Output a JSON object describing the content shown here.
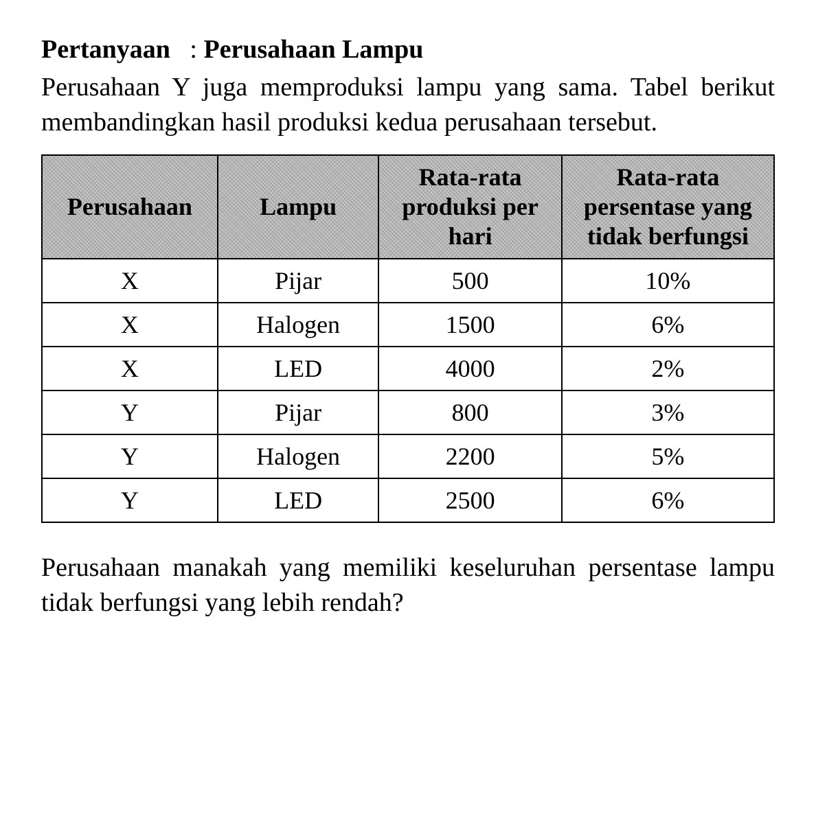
{
  "heading": {
    "label": "Pertanyaan",
    "separator": ":",
    "value": "Perusahaan Lampu"
  },
  "intro_text": "Perusahaan Y juga memproduksi lampu yang sama. Tabel berikut membandingkan hasil produksi kedua perusahaan tersebut.",
  "table": {
    "columns": [
      "Perusahaan",
      "Lampu",
      "Rata-rata produksi per hari",
      "Rata-rata persentase yang tidak berfungsi"
    ],
    "rows": [
      {
        "perusahaan": "X",
        "lampu": "Pijar",
        "produksi": "500",
        "persen": "10%"
      },
      {
        "perusahaan": "X",
        "lampu": "Halogen",
        "produksi": "1500",
        "persen": "6%"
      },
      {
        "perusahaan": "X",
        "lampu": "LED",
        "produksi": "4000",
        "persen": "2%"
      },
      {
        "perusahaan": "Y",
        "lampu": "Pijar",
        "produksi": "800",
        "persen": "3%"
      },
      {
        "perusahaan": "Y",
        "lampu": "Halogen",
        "produksi": "2200",
        "persen": "5%"
      },
      {
        "perusahaan": "Y",
        "lampu": "LED",
        "produksi": "2500",
        "persen": "6%"
      }
    ],
    "header_bg": "#b8b8b8",
    "border_color": "#000000",
    "body_bg": "#ffffff",
    "font_family": "Times New Roman",
    "header_fontsize": 36,
    "body_fontsize": 36
  },
  "question_text": "Perusahaan manakah yang memiliki keseluruhan persentase lampu tidak berfungsi yang lebih rendah?",
  "colors": {
    "text": "#000000",
    "background": "#ffffff"
  },
  "typography": {
    "body_font": "Times New Roman",
    "title_fontsize": 38,
    "body_fontsize": 38
  }
}
